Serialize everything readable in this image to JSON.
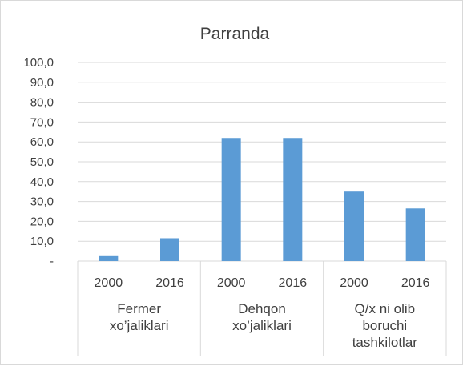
{
  "chart_data": {
    "type": "bar",
    "title": "Parranda",
    "xlabel": "",
    "ylabel": "",
    "ylim": [
      0,
      100
    ],
    "yticks": [
      "-",
      "10,0",
      "20,0",
      "30,0",
      "40,0",
      "50,0",
      "60,0",
      "70,0",
      "80,0",
      "90,0",
      "100,0"
    ],
    "groups": [
      {
        "label": [
          "Fermer",
          "xo’jaliklari"
        ],
        "categories": [
          "2000",
          "2016"
        ],
        "values": [
          2.5,
          11.5
        ]
      },
      {
        "label": [
          "Dehqon",
          "xo’jaliklari"
        ],
        "categories": [
          "2000",
          "2016"
        ],
        "values": [
          62.0,
          62.0
        ]
      },
      {
        "label": [
          "Q/x ni olib",
          "boruchi",
          "tashkilotlar"
        ],
        "categories": [
          "2000",
          "2016"
        ],
        "values": [
          35.0,
          26.5
        ]
      }
    ],
    "grid": true,
    "legend": "none",
    "colors": {
      "bar": "#5b9bd5",
      "grid": "#d9d9d9",
      "text": "#404040"
    }
  }
}
